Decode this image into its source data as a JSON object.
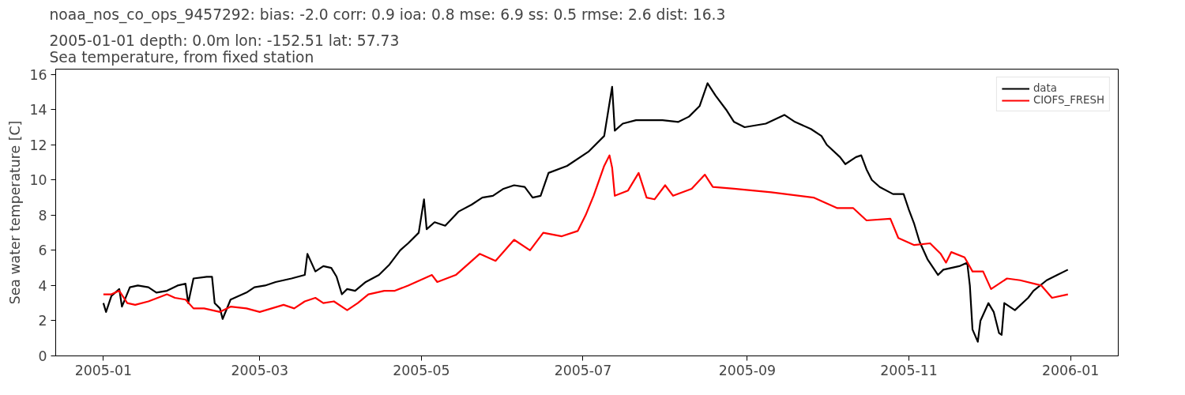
{
  "chart_data": {
    "type": "line",
    "title": "noaa_nos_co_ops_9457292: bias: -2.0  corr: 0.9  ioa: 0.8  mse: 6.9  ss: 0.5  rmse: 2.6  dist: 16.3",
    "subtitle": "2005-01-01 depth: 0.0m lon: -152.51 lat: 57.73\nSea temperature, from fixed station",
    "ylabel": "Sea water temperature [C]",
    "xlim": [
      "2004-12-14",
      "2006-01-19"
    ],
    "ylim": [
      0,
      16.3
    ],
    "xticks": [
      {
        "value": "2005-01-01",
        "label": "2005-01"
      },
      {
        "value": "2005-03-01",
        "label": "2005-03"
      },
      {
        "value": "2005-05-01",
        "label": "2005-05"
      },
      {
        "value": "2005-07-01",
        "label": "2005-07"
      },
      {
        "value": "2005-09-01",
        "label": "2005-09"
      },
      {
        "value": "2005-11-01",
        "label": "2005-11"
      },
      {
        "value": "2006-01-01",
        "label": "2006-01"
      }
    ],
    "yticks": [
      0,
      2,
      4,
      6,
      8,
      10,
      12,
      14,
      16
    ],
    "grid": false,
    "legend": "top right",
    "line_style": "solid",
    "series": [
      {
        "name": "data",
        "color": "#000000",
        "x": [
          "2005-01-01",
          "2005-01-02",
          "2005-01-04",
          "2005-01-07",
          "2005-01-08",
          "2005-01-11",
          "2005-01-14",
          "2005-01-18",
          "2005-01-21",
          "2005-01-25",
          "2005-01-29",
          "2005-02-01",
          "2005-02-02",
          "2005-02-04",
          "2005-02-09",
          "2005-02-11",
          "2005-02-12",
          "2005-02-14",
          "2005-02-15",
          "2005-02-18",
          "2005-02-24",
          "2005-02-27",
          "2005-03-03",
          "2005-03-07",
          "2005-03-13",
          "2005-03-18",
          "2005-03-19",
          "2005-03-22",
          "2005-03-25",
          "2005-03-28",
          "2005-03-30",
          "2005-04-01",
          "2005-04-03",
          "2005-04-06",
          "2005-04-10",
          "2005-04-15",
          "2005-04-19",
          "2005-04-23",
          "2005-04-26",
          "2005-04-30",
          "2005-05-02",
          "2005-05-03",
          "2005-05-06",
          "2005-05-10",
          "2005-05-15",
          "2005-05-20",
          "2005-05-24",
          "2005-05-28",
          "2005-06-01",
          "2005-06-05",
          "2005-06-09",
          "2005-06-12",
          "2005-06-15",
          "2005-06-18",
          "2005-06-25",
          "2005-07-03",
          "2005-07-09",
          "2005-07-12",
          "2005-07-13",
          "2005-07-16",
          "2005-07-21",
          "2005-07-31",
          "2005-08-06",
          "2005-08-10",
          "2005-08-14",
          "2005-08-17",
          "2005-08-20",
          "2005-08-24",
          "2005-08-27",
          "2005-08-31",
          "2005-09-08",
          "2005-09-15",
          "2005-09-19",
          "2005-09-25",
          "2005-09-29",
          "2005-10-01",
          "2005-10-06",
          "2005-10-08",
          "2005-10-12",
          "2005-10-14",
          "2005-10-16",
          "2005-10-18",
          "2005-10-21",
          "2005-10-26",
          "2005-10-30",
          "2005-11-01",
          "2005-11-03",
          "2005-11-05",
          "2005-11-08",
          "2005-11-12",
          "2005-11-14",
          "2005-11-20",
          "2005-11-23",
          "2005-11-24",
          "2005-11-25",
          "2005-11-27",
          "2005-11-28",
          "2005-12-01",
          "2005-12-03",
          "2005-12-05",
          "2005-12-06",
          "2005-12-07",
          "2005-12-11",
          "2005-12-16",
          "2005-12-18",
          "2005-12-23",
          "2005-12-27",
          "2005-12-31"
        ],
        "values": [
          3.0,
          2.5,
          3.4,
          3.8,
          2.8,
          3.9,
          4.0,
          3.9,
          3.6,
          3.7,
          4.0,
          4.1,
          3.0,
          4.4,
          4.5,
          4.5,
          3.0,
          2.7,
          2.1,
          3.2,
          3.6,
          3.9,
          4.0,
          4.2,
          4.4,
          4.6,
          5.8,
          4.8,
          5.1,
          5.0,
          4.5,
          3.5,
          3.8,
          3.7,
          4.2,
          4.6,
          5.2,
          6.0,
          6.4,
          7.0,
          8.9,
          7.2,
          7.6,
          7.4,
          8.2,
          8.6,
          9.0,
          9.1,
          9.5,
          9.7,
          9.6,
          9.0,
          9.1,
          10.4,
          10.8,
          11.6,
          12.5,
          15.3,
          12.8,
          13.2,
          13.4,
          13.4,
          13.3,
          13.6,
          14.2,
          15.5,
          14.8,
          14.0,
          13.3,
          13.0,
          13.2,
          13.7,
          13.3,
          12.9,
          12.5,
          12.0,
          11.3,
          10.9,
          11.3,
          11.4,
          10.6,
          10.0,
          9.6,
          9.2,
          9.2,
          8.3,
          7.5,
          6.5,
          5.5,
          4.6,
          4.9,
          5.1,
          5.3,
          4.0,
          1.5,
          0.8,
          2.0,
          3.0,
          2.5,
          1.3,
          1.2,
          3.0,
          2.6,
          3.3,
          3.7,
          4.3,
          4.6,
          4.9
        ]
      },
      {
        "name": "CIOFS_FRESH",
        "color": "#ff0000",
        "x": [
          "2005-01-01",
          "2005-01-04",
          "2005-01-07",
          "2005-01-10",
          "2005-01-13",
          "2005-01-18",
          "2005-01-25",
          "2005-01-28",
          "2005-02-01",
          "2005-02-04",
          "2005-02-08",
          "2005-02-14",
          "2005-02-18",
          "2005-02-24",
          "2005-03-01",
          "2005-03-10",
          "2005-03-14",
          "2005-03-18",
          "2005-03-22",
          "2005-03-25",
          "2005-03-29",
          "2005-04-03",
          "2005-04-07",
          "2005-04-11",
          "2005-04-17",
          "2005-04-21",
          "2005-04-26",
          "2005-05-05",
          "2005-05-07",
          "2005-05-14",
          "2005-05-23",
          "2005-05-29",
          "2005-06-05",
          "2005-06-11",
          "2005-06-16",
          "2005-06-23",
          "2005-06-29",
          "2005-07-02",
          "2005-07-05",
          "2005-07-09",
          "2005-07-11",
          "2005-07-12",
          "2005-07-13",
          "2005-07-18",
          "2005-07-22",
          "2005-07-25",
          "2005-07-28",
          "2005-08-01",
          "2005-08-04",
          "2005-08-11",
          "2005-08-16",
          "2005-08-19",
          "2005-08-27",
          "2005-09-10",
          "2005-09-26",
          "2005-10-05",
          "2005-10-11",
          "2005-10-16",
          "2005-10-25",
          "2005-10-28",
          "2005-11-03",
          "2005-11-09",
          "2005-11-13",
          "2005-11-15",
          "2005-11-17",
          "2005-11-22",
          "2005-11-25",
          "2005-11-29",
          "2005-12-02",
          "2005-12-08",
          "2005-12-13",
          "2005-12-21",
          "2005-12-25",
          "2005-12-31"
        ],
        "values": [
          3.5,
          3.5,
          3.7,
          3.0,
          2.9,
          3.1,
          3.5,
          3.3,
          3.2,
          2.7,
          2.7,
          2.5,
          2.8,
          2.7,
          2.5,
          2.9,
          2.7,
          3.1,
          3.3,
          3.0,
          3.1,
          2.6,
          3.0,
          3.5,
          3.7,
          3.7,
          4.0,
          4.6,
          4.2,
          4.6,
          5.8,
          5.4,
          6.6,
          6.0,
          7.0,
          6.8,
          7.1,
          8.0,
          9.1,
          10.8,
          11.4,
          10.7,
          9.1,
          9.4,
          10.4,
          9.0,
          8.9,
          9.7,
          9.1,
          9.5,
          10.3,
          9.6,
          9.5,
          9.3,
          9.0,
          8.4,
          8.4,
          7.7,
          7.8,
          6.7,
          6.3,
          6.4,
          5.8,
          5.3,
          5.9,
          5.6,
          4.8,
          4.8,
          3.8,
          4.4,
          4.3,
          4.0,
          3.3,
          3.5
        ]
      }
    ]
  }
}
